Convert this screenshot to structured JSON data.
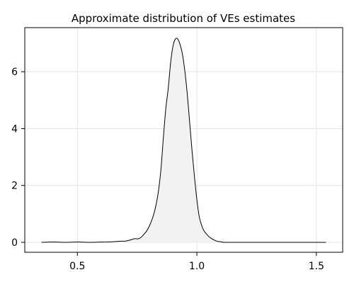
{
  "chart_data": {
    "type": "area",
    "title": "Approximate distribution of VEs estimates",
    "xlabel": "",
    "ylabel": "",
    "xlim": [
      0.28,
      1.61
    ],
    "ylim": [
      -0.35,
      7.55
    ],
    "xticks": [
      0.5,
      1.0,
      1.5
    ],
    "xtick_labels": [
      "0.5",
      "1.0",
      "1.5"
    ],
    "yticks": [
      0,
      2,
      4,
      6
    ],
    "ytick_labels": [
      "0",
      "2",
      "4",
      "6"
    ],
    "grid": true,
    "legend": "none",
    "series": [
      {
        "x": [
          0.35,
          0.4,
          0.45,
          0.5,
          0.55,
          0.6,
          0.65,
          0.68,
          0.7,
          0.72,
          0.74,
          0.75,
          0.76,
          0.77,
          0.78,
          0.79,
          0.8,
          0.81,
          0.82,
          0.83,
          0.84,
          0.85,
          0.86,
          0.87,
          0.88,
          0.89,
          0.9,
          0.91,
          0.92,
          0.93,
          0.94,
          0.95,
          0.96,
          0.97,
          0.98,
          0.99,
          1.0,
          1.01,
          1.02,
          1.03,
          1.04,
          1.05,
          1.06,
          1.07,
          1.08,
          1.09,
          1.1,
          1.11,
          1.12,
          1.13,
          1.15,
          1.2,
          1.3,
          1.4,
          1.5,
          1.54
        ],
        "y": [
          0.0,
          0.01,
          0.0,
          0.01,
          0.0,
          0.01,
          0.02,
          0.04,
          0.04,
          0.08,
          0.13,
          0.12,
          0.14,
          0.2,
          0.3,
          0.4,
          0.55,
          0.75,
          1.0,
          1.35,
          1.85,
          2.6,
          3.7,
          4.7,
          5.4,
          6.3,
          6.9,
          7.15,
          7.15,
          6.95,
          6.6,
          6.0,
          5.2,
          4.2,
          3.2,
          2.3,
          1.5,
          0.9,
          0.6,
          0.4,
          0.3,
          0.2,
          0.14,
          0.09,
          0.05,
          0.03,
          0.02,
          0.0,
          0.0,
          0.0,
          0.0,
          0.0,
          0.0,
          0.0,
          0.0,
          0.0
        ],
        "line_color": "#000000",
        "fill_color": "#f2f2f2"
      }
    ]
  },
  "colors": {
    "background": "#ffffff",
    "grid": "#e6e6e6",
    "axis": "#000000"
  }
}
